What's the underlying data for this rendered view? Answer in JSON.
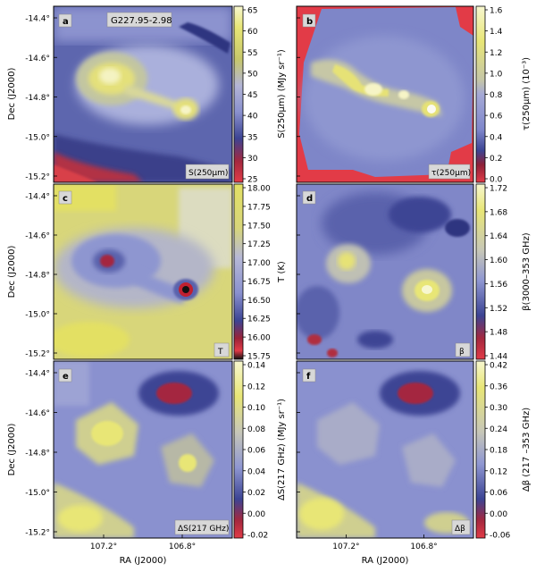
{
  "figure": {
    "object_title": "G227.95-2.98",
    "ra_label": "RA (J2000)",
    "dec_label": "Dec (J2000)",
    "ra_ticks": [
      "107.2°",
      "106.8°"
    ],
    "dec_ticks": [
      "-14.4°",
      "-14.6°",
      "-14.8°",
      "-15.0°",
      "-15.2°"
    ]
  },
  "panels": [
    {
      "id": "a",
      "letter": "a",
      "name": "S(250μm)",
      "cbar_label": "S(250μm) (MJy sr⁻¹)",
      "ticks": [
        "65",
        "60",
        "55",
        "50",
        "45",
        "40",
        "35",
        "30",
        "25"
      ],
      "colors": {
        "hi": "#e8e676",
        "mid": "#9aa1d6",
        "lo": "#d63a45"
      }
    },
    {
      "id": "b",
      "letter": "b",
      "name": "τ(250μm)",
      "cbar_label": "τ(250μm) (10⁻³)",
      "ticks": [
        "1.6",
        "1.4",
        "1.2",
        "1.0",
        "0.8",
        "0.6",
        "0.4",
        "0.2",
        "0.0"
      ],
      "colors": {
        "hi": "#e8e676",
        "mid": "#9aa1d6",
        "lo": "#d63a45"
      }
    },
    {
      "id": "c",
      "letter": "c",
      "name": "T",
      "cbar_label": "T (K)",
      "ticks": [
        "18.00",
        "17.75",
        "17.50",
        "17.25",
        "17.00",
        "16.75",
        "16.50",
        "16.25",
        "16.00",
        "15.75"
      ],
      "colors": {
        "hi": "#e3e064",
        "mid": "#9aa1d6",
        "lo": "#c02030"
      }
    },
    {
      "id": "d",
      "letter": "d",
      "name": "β",
      "cbar_label": "β(3000–353 GHz)",
      "ticks": [
        "1.72",
        "1.68",
        "1.64",
        "1.60",
        "1.56",
        "1.52",
        "1.48",
        "1.44"
      ],
      "colors": {
        "hi": "#e8e676",
        "mid": "#8f97d2",
        "lo": "#d63a45"
      }
    },
    {
      "id": "e",
      "letter": "e",
      "name": "ΔS(217 GHz)",
      "cbar_label": "ΔS(217 GHz) (MJy sr⁻¹)",
      "ticks": [
        "0.14",
        "0.12",
        "0.10",
        "0.08",
        "0.06",
        "0.04",
        "0.02",
        "0.00",
        "-0.02"
      ],
      "colors": {
        "hi": "#e8e676",
        "mid": "#8f97d2",
        "lo": "#d63a45"
      }
    },
    {
      "id": "f",
      "letter": "f",
      "name": "Δβ",
      "cbar_label": "Δβ (217 –353 GHz)",
      "ticks": [
        "0.42",
        "0.36",
        "0.30",
        "0.24",
        "0.18",
        "0.12",
        "0.06",
        "0.00",
        "-0.06"
      ],
      "colors": {
        "hi": "#e8e676",
        "mid": "#8f97d2",
        "lo": "#d63a45"
      }
    }
  ]
}
